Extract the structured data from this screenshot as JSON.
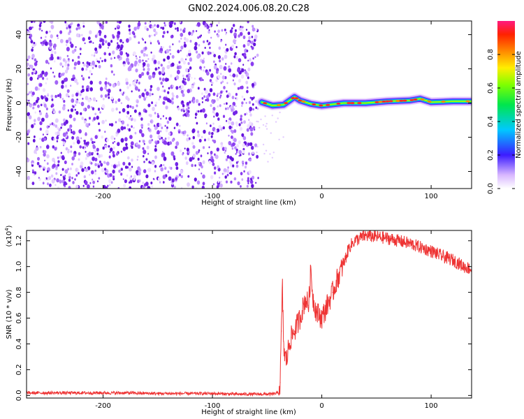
{
  "title": "GN02.2024.006.08.20.C28",
  "colors": {
    "snr_line": "#ee3333",
    "scatter_dot": "#7a2fe6",
    "axis": "#000000",
    "background": "#ffffff"
  },
  "chart_data": [
    {
      "type": "heatmap",
      "panel": "top",
      "xlabel": "Height of straight line (km)",
      "ylabel": "Frequency (Hz)",
      "xlim": [
        -270,
        137
      ],
      "ylim": [
        -50,
        48
      ],
      "xticks": [
        -200,
        -100,
        0,
        100
      ],
      "yticks": [
        -40,
        -20,
        0,
        20,
        40
      ],
      "noise_region_x": [
        -270,
        -58
      ],
      "signal_track": {
        "description_points_x": [
          -55,
          -45,
          -35,
          -25,
          -20,
          -10,
          0,
          20,
          40,
          60,
          80,
          90,
          100,
          120,
          137
        ],
        "frequency_y": [
          0.5,
          -1.5,
          -1.0,
          3.5,
          1.5,
          -0.5,
          -1.5,
          0,
          0,
          1.0,
          1.5,
          2.5,
          0.5,
          1.0,
          1.0
        ]
      },
      "colorbar": {
        "label": "Normalized spectral amplitude",
        "range": [
          0,
          1
        ],
        "ticks": [
          "0.0",
          "0.2",
          "0.4",
          "0.6",
          "0.8"
        ],
        "tick_values": [
          0.0,
          0.2,
          0.4,
          0.6,
          0.8
        ],
        "scheme": "rainbow"
      }
    },
    {
      "type": "line",
      "panel": "bottom",
      "xlabel": "Height of straight line (km)",
      "ylabel": "SNR (10 * v/v)",
      "y_multiplier": "(x10",
      "y_multiplier_exp": "4",
      "y_multiplier_close": ")",
      "xlim": [
        -270,
        137
      ],
      "ylim": [
        -0.02,
        1.28
      ],
      "xticks": [
        -200,
        -100,
        0,
        100
      ],
      "yticks": [
        "0.0",
        "0.2",
        "0.4",
        "0.6",
        "0.8",
        "1.0",
        "1.2"
      ],
      "ytick_values": [
        0.0,
        0.2,
        0.4,
        0.6,
        0.8,
        1.0,
        1.2
      ],
      "series": [
        {
          "x": [
            -270,
            -250,
            -230,
            -200,
            -180,
            -150,
            -120,
            -100,
            -80,
            -60,
            -45,
            -40,
            -38,
            -37,
            -36,
            -35,
            -34,
            -32,
            -30,
            -28,
            -25,
            -20,
            -15,
            -12,
            -10,
            -8,
            -5,
            0,
            5,
            10,
            15,
            20,
            25,
            30,
            40,
            50,
            60,
            70,
            80,
            90,
            100,
            110,
            120,
            130,
            137
          ],
          "y": [
            0.02,
            0.02,
            0.02,
            0.02,
            0.02,
            0.015,
            0.015,
            0.015,
            0.01,
            0.01,
            0.01,
            0.02,
            0.1,
            0.5,
            0.84,
            0.42,
            0.3,
            0.28,
            0.4,
            0.45,
            0.5,
            0.6,
            0.75,
            0.7,
            0.98,
            0.75,
            0.65,
            0.6,
            0.7,
            0.8,
            0.92,
            1.02,
            1.15,
            1.2,
            1.24,
            1.23,
            1.22,
            1.2,
            1.18,
            1.15,
            1.12,
            1.08,
            1.05,
            1.0,
            0.98
          ]
        }
      ]
    }
  ]
}
